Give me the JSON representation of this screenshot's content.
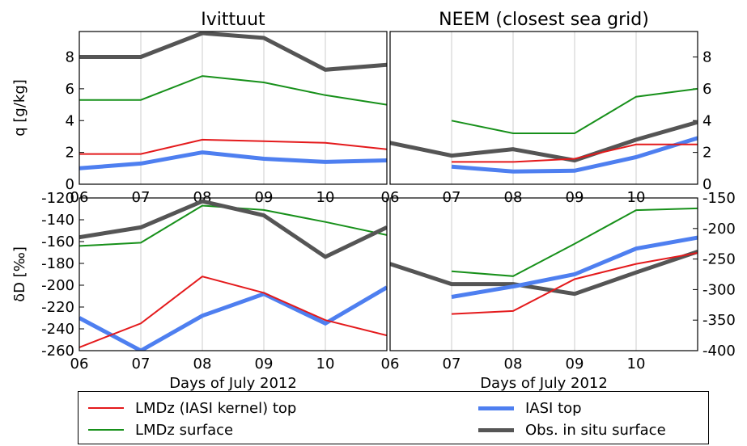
{
  "colors": {
    "lmdz_kernel_top": "#e41a1c",
    "lmdz_surface": "#17901a",
    "iasi_top": "#4e7ff0",
    "obs_surface": "#555555"
  },
  "shared_xlabel": "Days of July 2012",
  "chart_data": [
    {
      "type": "line",
      "title": "Ivittuut",
      "xlabel": "",
      "ylabel": "q [g/kg]",
      "x": [
        6,
        7,
        8,
        9,
        10,
        11
      ],
      "xlim": [
        6,
        11
      ],
      "xticks": [
        "06",
        "07",
        "08",
        "09",
        "10"
      ],
      "ylim": [
        0,
        9.6
      ],
      "yticks": [
        0,
        2,
        4,
        6,
        8
      ],
      "yaxis_side": "left",
      "grid": "vertical",
      "series": [
        {
          "name": "LMDz (IASI kernel) top",
          "color_key": "lmdz_kernel_top",
          "x": [
            6,
            7,
            8,
            9,
            10,
            11
          ],
          "values": [
            1.9,
            1.9,
            2.8,
            2.7,
            2.6,
            2.2
          ]
        },
        {
          "name": "LMDz surface",
          "color_key": "lmdz_surface",
          "x": [
            6,
            7,
            8,
            9,
            10,
            11
          ],
          "values": [
            5.3,
            5.3,
            6.8,
            6.4,
            5.6,
            5.0
          ]
        },
        {
          "name": "IASI top",
          "color_key": "iasi_top",
          "x": [
            6,
            7,
            8,
            9,
            10,
            11
          ],
          "values": [
            1.0,
            1.3,
            2.0,
            1.6,
            1.4,
            1.5
          ]
        },
        {
          "name": "Obs. in situ surface",
          "color_key": "obs_surface",
          "x": [
            6,
            7,
            8,
            9,
            10,
            11
          ],
          "values": [
            8.0,
            8.0,
            9.5,
            9.2,
            7.2,
            7.5
          ]
        }
      ]
    },
    {
      "type": "line",
      "title": "NEEM (closest sea grid)",
      "xlabel": "",
      "ylabel": "",
      "x": [
        6,
        7,
        8,
        9,
        10,
        11
      ],
      "xlim": [
        6,
        11
      ],
      "xticks": [
        "06",
        "07",
        "08",
        "09",
        "10"
      ],
      "ylim": [
        0,
        9.6
      ],
      "yticks": [
        0,
        2,
        4,
        6,
        8
      ],
      "yaxis_side": "right",
      "grid": "vertical",
      "series": [
        {
          "name": "LMDz (IASI kernel) top",
          "color_key": "lmdz_kernel_top",
          "x": [
            7,
            8,
            9,
            10,
            11
          ],
          "values": [
            1.4,
            1.4,
            1.6,
            2.5,
            2.5
          ]
        },
        {
          "name": "LMDz surface",
          "color_key": "lmdz_surface",
          "x": [
            7,
            8,
            9,
            10,
            11
          ],
          "values": [
            4.0,
            3.2,
            3.2,
            5.5,
            6.0
          ]
        },
        {
          "name": "IASI top",
          "color_key": "iasi_top",
          "x": [
            7,
            8,
            9,
            10,
            11
          ],
          "values": [
            1.1,
            0.8,
            0.85,
            1.7,
            2.9
          ]
        },
        {
          "name": "Obs. in situ surface",
          "color_key": "obs_surface",
          "x": [
            6,
            7,
            8,
            9,
            10,
            11
          ],
          "values": [
            2.6,
            1.8,
            2.2,
            1.5,
            2.8,
            3.9
          ]
        }
      ]
    },
    {
      "type": "line",
      "title": "",
      "xlabel": "Days of July 2012",
      "ylabel": "δD [‰]",
      "x": [
        6,
        7,
        8,
        9,
        10,
        11
      ],
      "xlim": [
        6,
        11
      ],
      "xticks": [
        "06",
        "07",
        "08",
        "09",
        "10"
      ],
      "ylim": [
        -260,
        -120
      ],
      "yticks": [
        -260,
        -240,
        -220,
        -200,
        -180,
        -160,
        -140,
        -120
      ],
      "yaxis_side": "left",
      "grid": "vertical",
      "series": [
        {
          "name": "LMDz (IASI kernel) top",
          "color_key": "lmdz_kernel_top",
          "x": [
            6,
            7,
            8,
            9,
            10,
            11
          ],
          "values": [
            -257,
            -235,
            -192,
            -207,
            -232,
            -246
          ]
        },
        {
          "name": "LMDz surface",
          "color_key": "lmdz_surface",
          "x": [
            6,
            7,
            8,
            9,
            10,
            11
          ],
          "values": [
            -164,
            -161,
            -127,
            -131,
            -142,
            -154
          ]
        },
        {
          "name": "IASI top",
          "color_key": "iasi_top",
          "x": [
            6,
            7,
            8,
            9,
            10,
            11
          ],
          "values": [
            -230,
            -260,
            -228,
            -208,
            -235,
            -202
          ]
        },
        {
          "name": "Obs. in situ surface",
          "color_key": "obs_surface",
          "x": [
            6,
            7,
            8,
            9,
            10,
            11
          ],
          "values": [
            -156,
            -147,
            -123,
            -136,
            -174,
            -147
          ]
        }
      ]
    },
    {
      "type": "line",
      "title": "",
      "xlabel": "Days of July 2012",
      "ylabel": "",
      "x": [
        6,
        7,
        8,
        9,
        10,
        11
      ],
      "xlim": [
        6,
        11
      ],
      "xticks": [
        "06",
        "07",
        "08",
        "09",
        "10"
      ],
      "ylim": [
        -400,
        -150
      ],
      "yticks": [
        -400,
        -350,
        -300,
        -250,
        -200,
        -150
      ],
      "yaxis_side": "right",
      "grid": "vertical",
      "series": [
        {
          "name": "LMDz (IASI kernel) top",
          "color_key": "lmdz_kernel_top",
          "x": [
            7,
            8,
            9,
            10,
            11
          ],
          "values": [
            -340,
            -335,
            -283,
            -258,
            -240
          ]
        },
        {
          "name": "LMDz surface",
          "color_key": "lmdz_surface",
          "x": [
            7,
            8,
            9,
            10,
            11
          ],
          "values": [
            -270,
            -278,
            -225,
            -170,
            -167
          ]
        },
        {
          "name": "IASI top",
          "color_key": "iasi_top",
          "x": [
            7,
            8,
            9,
            10,
            11
          ],
          "values": [
            -312,
            -295,
            -275,
            -233,
            -215
          ]
        },
        {
          "name": "Obs. in situ surface",
          "color_key": "obs_surface",
          "x": [
            6,
            7,
            8,
            9,
            10,
            11
          ],
          "values": [
            -258,
            -291,
            -291,
            -307,
            -272,
            -238
          ]
        }
      ]
    }
  ],
  "legend": {
    "items": [
      {
        "label": "LMDz (IASI kernel) top",
        "color_key": "lmdz_kernel_top",
        "weight": 2
      },
      {
        "label": "IASI top",
        "color_key": "iasi_top",
        "weight": 5
      },
      {
        "label": "LMDz surface",
        "color_key": "lmdz_surface",
        "weight": 2
      },
      {
        "label": "Obs. in situ surface",
        "color_key": "obs_surface",
        "weight": 5
      }
    ]
  }
}
